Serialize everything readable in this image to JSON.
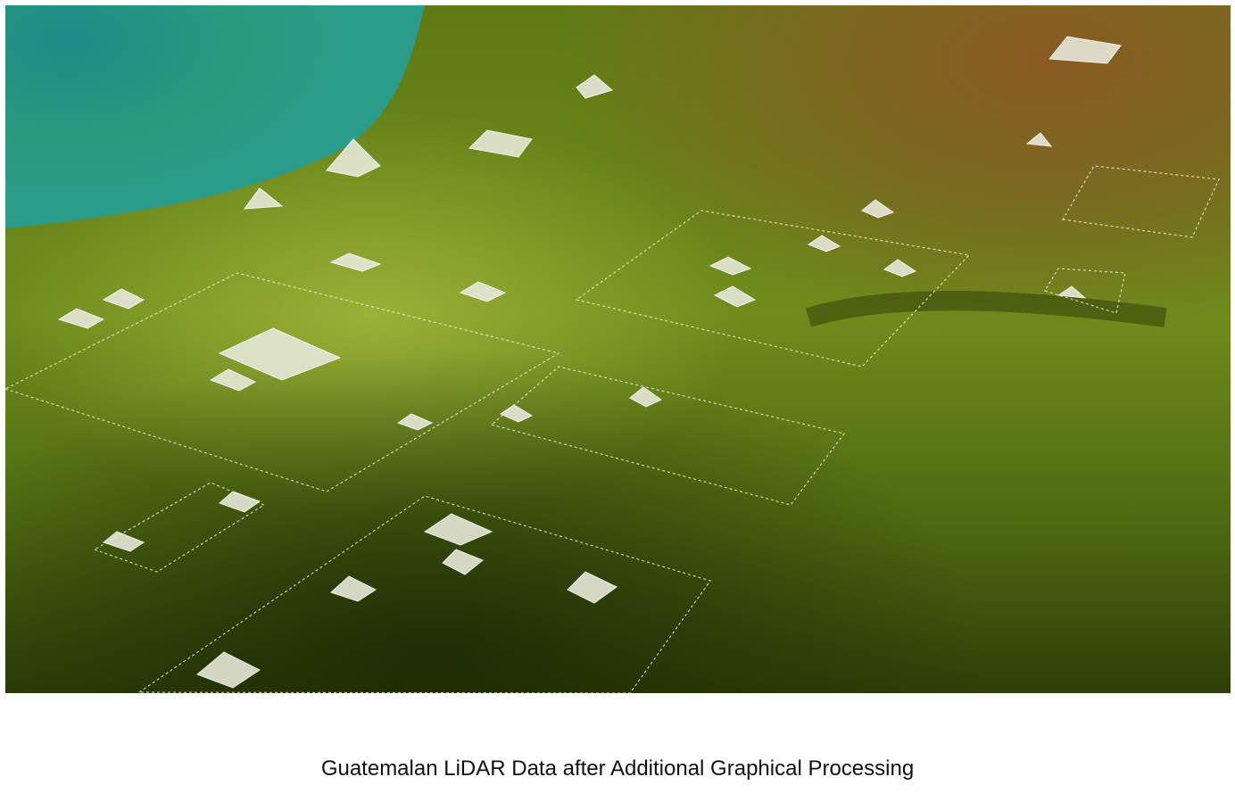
{
  "caption": "Guatemalan LiDAR Data after Additional Graphical Processing"
}
